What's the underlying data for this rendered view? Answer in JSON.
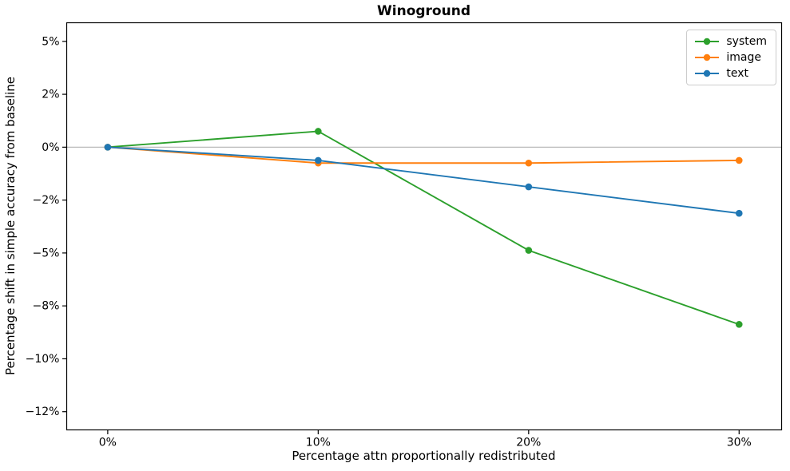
{
  "figure": {
    "title": "Winoground",
    "xlabel": "Percentage attn proportionally redistributed",
    "ylabel": "Percentage shift in simple accuracy from baseline"
  },
  "chart_data": {
    "type": "line",
    "title": "Winoground",
    "xlabel": "Percentage attn proportionally redistributed",
    "ylabel": "Percentage shift in simple accuracy from baseline",
    "x": [
      0,
      10,
      20,
      30
    ],
    "x_tick_labels": [
      "0%",
      "10%",
      "20%",
      "30%"
    ],
    "y_ticks": [
      {
        "value": 5,
        "label": "5%"
      },
      {
        "value": 2.5,
        "label": "2%"
      },
      {
        "value": 0,
        "label": "0%"
      },
      {
        "value": -2.5,
        "label": "−2%"
      },
      {
        "value": -5,
        "label": "−5%"
      },
      {
        "value": -7.5,
        "label": "−8%"
      },
      {
        "value": -10,
        "label": "−10%"
      },
      {
        "value": -12.5,
        "label": "−12%"
      }
    ],
    "xlim": [
      -1.95,
      32.02
    ],
    "ylim": [
      -13.36,
      5.88
    ],
    "grid": false,
    "zero_line": {
      "value": 0,
      "color": "#b9b9b9"
    },
    "series": [
      {
        "name": "system",
        "color": "#2ca02c",
        "values": [
          0,
          0.75,
          -4.875,
          -8.375
        ]
      },
      {
        "name": "image",
        "color": "#ff7f0e",
        "values": [
          0,
          -0.75,
          -0.75,
          -0.625
        ]
      },
      {
        "name": "text",
        "color": "#1f77b4",
        "values": [
          0,
          -0.625,
          -1.875,
          -3.125
        ]
      }
    ],
    "legend": {
      "position": "upper right",
      "entries": [
        "system",
        "image",
        "text"
      ]
    },
    "style": {
      "axis_color": "#000000",
      "background": "#ffffff",
      "legend_border": "#cccccc"
    }
  }
}
